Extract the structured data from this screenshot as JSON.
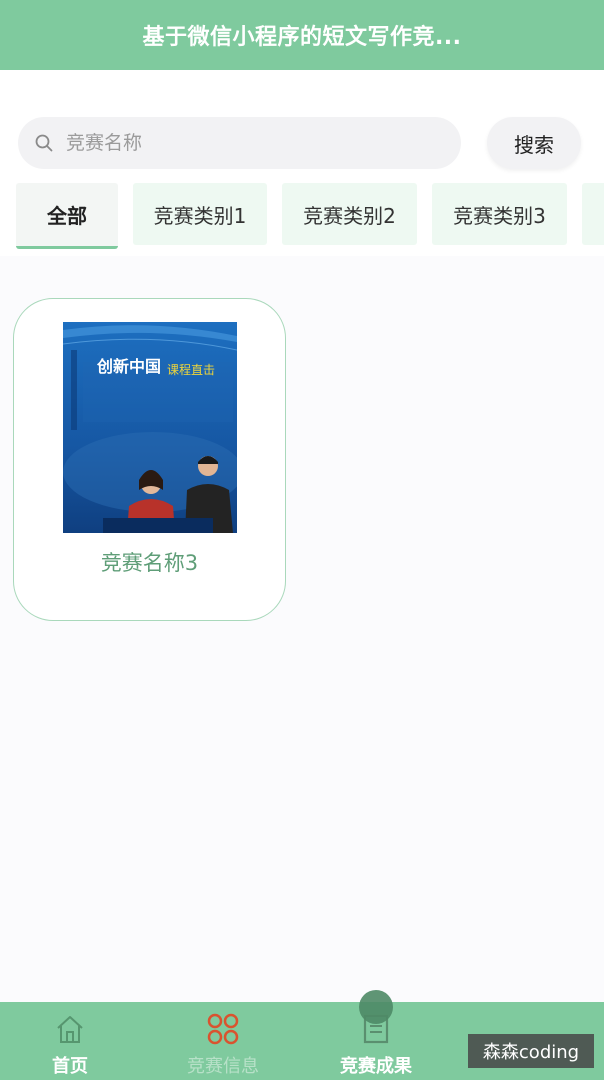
{
  "header": {
    "title": "基于微信小程序的短文写作竞..."
  },
  "search": {
    "placeholder": "竞赛名称",
    "value": "",
    "button_label": "搜索"
  },
  "tabs": [
    {
      "label": "全部",
      "active": true
    },
    {
      "label": "竞赛类别1",
      "active": false
    },
    {
      "label": "竞赛类别2",
      "active": false
    },
    {
      "label": "竞赛类别3",
      "active": false
    }
  ],
  "cards": [
    {
      "name": "竞赛名称3",
      "cover": {
        "title_main": "创新中国",
        "title_sub": "课程直击",
        "image": "book-cover-two-speakers"
      }
    }
  ],
  "bottom_nav": [
    {
      "label": "首页",
      "icon": "home-icon"
    },
    {
      "label": "竞赛信息",
      "icon": "clover-icon"
    },
    {
      "label": "竞赛成果",
      "icon": "document-icon"
    }
  ],
  "watermark": "森森coding",
  "colors": {
    "primary": "#7fca9e",
    "accent_red": "#d9532f",
    "card_text": "#5f9e78"
  }
}
